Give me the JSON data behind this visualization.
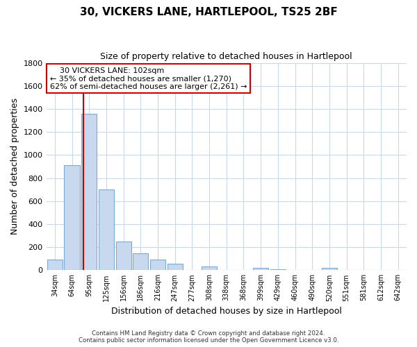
{
  "title": "30, VICKERS LANE, HARTLEPOOL, TS25 2BF",
  "subtitle": "Size of property relative to detached houses in Hartlepool",
  "xlabel": "Distribution of detached houses by size in Hartlepool",
  "ylabel": "Number of detached properties",
  "bar_labels": [
    "34sqm",
    "64sqm",
    "95sqm",
    "125sqm",
    "156sqm",
    "186sqm",
    "216sqm",
    "247sqm",
    "277sqm",
    "308sqm",
    "338sqm",
    "368sqm",
    "399sqm",
    "429sqm",
    "460sqm",
    "490sqm",
    "520sqm",
    "551sqm",
    "581sqm",
    "612sqm",
    "642sqm"
  ],
  "bar_values": [
    90,
    910,
    1360,
    700,
    250,
    145,
    90,
    55,
    0,
    30,
    0,
    0,
    20,
    10,
    0,
    0,
    20,
    0,
    0,
    0,
    0
  ],
  "bar_color": "#c8d8ee",
  "bar_edge_color": "#7baad4",
  "vline_x_index": 2,
  "vline_color": "#cc0000",
  "ylim": [
    0,
    1800
  ],
  "yticks": [
    0,
    200,
    400,
    600,
    800,
    1000,
    1200,
    1400,
    1600,
    1800
  ],
  "annotation_title": "30 VICKERS LANE: 102sqm",
  "annotation_line1": "← 35% of detached houses are smaller (1,270)",
  "annotation_line2": "62% of semi-detached houses are larger (2,261) →",
  "annotation_box_color": "#ffffff",
  "annotation_border_color": "#cc0000",
  "footer1": "Contains HM Land Registry data © Crown copyright and database right 2024.",
  "footer2": "Contains public sector information licensed under the Open Government Licence v3.0.",
  "background_color": "#ffffff",
  "grid_color": "#c8d8ee"
}
